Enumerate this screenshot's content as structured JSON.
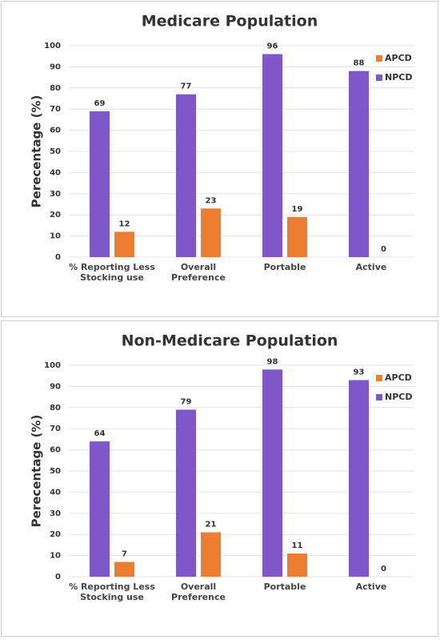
{
  "chart_data": [
    {
      "type": "bar",
      "title": "Medicare Population",
      "y_label": "Perecentage (%)",
      "categories": [
        "% Reporting Less Stocking use",
        "Overall Preference",
        "Portable",
        "Active"
      ],
      "series": [
        {
          "name": "APCD",
          "color": "#ed7d31",
          "values": [
            12,
            23,
            19,
            0
          ]
        },
        {
          "name": "NPCD",
          "color": "#7e57c8",
          "values": [
            69,
            77,
            96,
            88
          ]
        }
      ],
      "ylim": [
        0,
        100
      ],
      "yticks": [
        0,
        10,
        20,
        30,
        40,
        50,
        60,
        70,
        80,
        90,
        100
      ],
      "grid": true,
      "legend": "top-right"
    },
    {
      "type": "bar",
      "title": "Non-Medicare Population",
      "y_label": "Perecentage (%)",
      "categories": [
        "% Reporting Less Stocking use",
        "Overall Preference",
        "Portable",
        "Active"
      ],
      "series": [
        {
          "name": "APCD",
          "color": "#ed7d31",
          "values": [
            7,
            21,
            11,
            0
          ]
        },
        {
          "name": "NPCD",
          "color": "#7e57c8",
          "values": [
            64,
            79,
            98,
            93
          ]
        }
      ],
      "ylim": [
        0,
        100
      ],
      "yticks": [
        0,
        10,
        20,
        30,
        40,
        50,
        60,
        70,
        80,
        90,
        100
      ],
      "grid": true,
      "legend": "top-right"
    }
  ]
}
